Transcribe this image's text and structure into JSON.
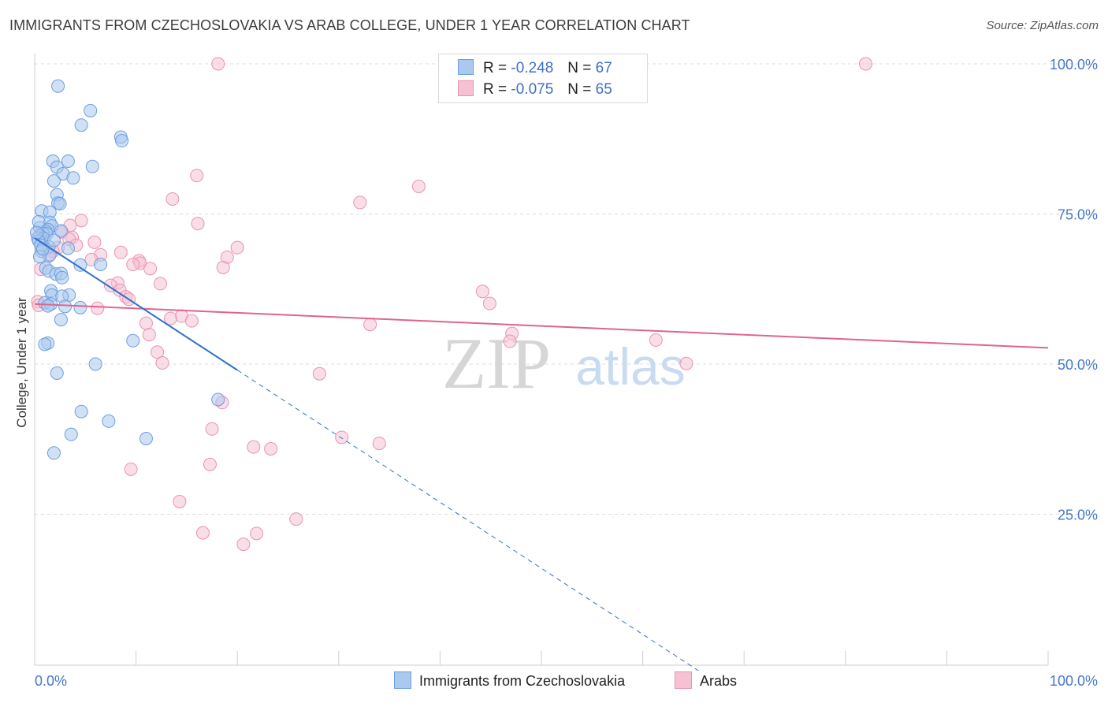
{
  "title": "IMMIGRANTS FROM CZECHOSLOVAKIA VS ARAB COLLEGE, UNDER 1 YEAR CORRELATION CHART",
  "source": "Source: ZipAtlas.com",
  "watermark": {
    "zip": "ZIP",
    "atlas": "atlas"
  },
  "legend": {
    "row1": {
      "r_label": "R =",
      "r_value": "-0.248",
      "n_label": "N =",
      "n_value": "67"
    },
    "row2": {
      "r_label": "R =",
      "r_value": "-0.075",
      "n_label": "N =",
      "n_value": "65"
    }
  },
  "colors": {
    "blue_fill": "#aac9ef",
    "blue_stroke": "#6d9ede",
    "blue_line": "#2f6fd0",
    "pink_fill": "#f6c2d3",
    "pink_stroke": "#e993b0",
    "pink_line": "#e0648c",
    "axis_text": "#4577c9",
    "grid": "#dcdcdc"
  },
  "chart_data": {
    "type": "scatter",
    "title": "IMMIGRANTS FROM CZECHOSLOVAKIA VS ARAB COLLEGE, UNDER 1 YEAR CORRELATION CHART",
    "xlabel": "",
    "ylabel": "College, Under 1 year",
    "xlim": [
      0,
      100
    ],
    "ylim": [
      0,
      100
    ],
    "x_tick_labels": [
      "0.0%",
      "100.0%"
    ],
    "y_tick_labels": [
      "25.0%",
      "50.0%",
      "75.0%",
      "100.0%"
    ],
    "y_ticks": [
      25,
      50,
      75,
      100
    ],
    "legend": [
      "Immigrants from Czechoslovakia",
      "Arabs"
    ],
    "series": [
      {
        "name": "Immigrants from Czechoslovakia",
        "r": -0.248,
        "n": 67,
        "trend": {
          "x0": 0,
          "y0": 71.0,
          "x1": 20,
          "y1": 49.0,
          "dash_to_x": 65.5
        },
        "points": [
          [
            2.3,
            96.3
          ],
          [
            5.5,
            92.2
          ],
          [
            4.6,
            89.8
          ],
          [
            8.5,
            87.8
          ],
          [
            8.6,
            87.2
          ],
          [
            1.8,
            83.8
          ],
          [
            3.3,
            83.8
          ],
          [
            2.2,
            82.8
          ],
          [
            5.7,
            82.9
          ],
          [
            2.8,
            81.7
          ],
          [
            3.8,
            81.0
          ],
          [
            1.9,
            80.5
          ],
          [
            2.2,
            78.2
          ],
          [
            2.3,
            76.8
          ],
          [
            2.5,
            76.7
          ],
          [
            0.7,
            75.5
          ],
          [
            1.5,
            75.3
          ],
          [
            1.5,
            73.6
          ],
          [
            1.7,
            73.0
          ],
          [
            0.5,
            72.7
          ],
          [
            1.3,
            72.4
          ],
          [
            1.1,
            72.1
          ],
          [
            0.8,
            71.8
          ],
          [
            1.2,
            71.7
          ],
          [
            0.5,
            71.4
          ],
          [
            0.3,
            71.0
          ],
          [
            0.9,
            70.9
          ],
          [
            2.6,
            72.2
          ],
          [
            0.4,
            70.5
          ],
          [
            0.6,
            69.8
          ],
          [
            1.4,
            69.5
          ],
          [
            3.3,
            69.3
          ],
          [
            0.7,
            68.8
          ],
          [
            1.5,
            68.2
          ],
          [
            0.5,
            67.9
          ],
          [
            6.5,
            66.6
          ],
          [
            4.5,
            66.5
          ],
          [
            1.1,
            66.0
          ],
          [
            1.4,
            65.5
          ],
          [
            2.1,
            65.0
          ],
          [
            2.6,
            65.1
          ],
          [
            2.7,
            64.4
          ],
          [
            1.6,
            62.2
          ],
          [
            1.7,
            61.5
          ],
          [
            3.4,
            61.5
          ],
          [
            2.7,
            61.3
          ],
          [
            1.0,
            60.2
          ],
          [
            1.6,
            60.0
          ],
          [
            1.3,
            59.7
          ],
          [
            3.0,
            59.6
          ],
          [
            4.5,
            59.4
          ],
          [
            2.6,
            57.4
          ],
          [
            9.7,
            53.9
          ],
          [
            1.3,
            53.5
          ],
          [
            1.0,
            53.3
          ],
          [
            6.0,
            50.0
          ],
          [
            2.2,
            48.5
          ],
          [
            18.1,
            44.1
          ],
          [
            4.6,
            42.1
          ],
          [
            7.3,
            40.5
          ],
          [
            3.6,
            38.3
          ],
          [
            11.0,
            37.6
          ],
          [
            1.9,
            35.2
          ],
          [
            0.4,
            73.7
          ],
          [
            0.8,
            69.2
          ],
          [
            1.9,
            70.6
          ],
          [
            0.2,
            71.9
          ]
        ]
      },
      {
        "name": "Arabs",
        "r": -0.075,
        "n": 65,
        "trend": {
          "x0": 0,
          "y0": 60.0,
          "x1": 100,
          "y1": 52.7
        },
        "points": [
          [
            18.1,
            100.0
          ],
          [
            82.0,
            100.0
          ],
          [
            16.0,
            81.4
          ],
          [
            37.9,
            79.6
          ],
          [
            13.6,
            77.5
          ],
          [
            32.1,
            76.9
          ],
          [
            4.6,
            73.9
          ],
          [
            16.1,
            73.4
          ],
          [
            3.5,
            73.1
          ],
          [
            2.7,
            72.0
          ],
          [
            3.7,
            71.1
          ],
          [
            3.4,
            70.8
          ],
          [
            5.9,
            70.3
          ],
          [
            4.1,
            69.8
          ],
          [
            2.3,
            69.4
          ],
          [
            20.0,
            69.4
          ],
          [
            1.8,
            68.8
          ],
          [
            8.5,
            68.6
          ],
          [
            6.5,
            68.2
          ],
          [
            1.4,
            68.0
          ],
          [
            19.0,
            67.8
          ],
          [
            5.6,
            67.4
          ],
          [
            10.3,
            67.2
          ],
          [
            10.4,
            66.8
          ],
          [
            9.7,
            66.6
          ],
          [
            18.6,
            66.1
          ],
          [
            0.6,
            65.8
          ],
          [
            8.2,
            63.5
          ],
          [
            12.4,
            63.4
          ],
          [
            7.5,
            63.1
          ],
          [
            8.4,
            62.3
          ],
          [
            44.2,
            62.1
          ],
          [
            9.0,
            61.2
          ],
          [
            44.9,
            60.1
          ],
          [
            0.3,
            60.4
          ],
          [
            6.2,
            59.3
          ],
          [
            14.5,
            58.0
          ],
          [
            13.4,
            57.6
          ],
          [
            15.5,
            57.2
          ],
          [
            11.0,
            56.8
          ],
          [
            33.1,
            56.6
          ],
          [
            47.1,
            55.1
          ],
          [
            11.3,
            54.9
          ],
          [
            46.9,
            53.8
          ],
          [
            61.3,
            54.0
          ],
          [
            12.1,
            52.0
          ],
          [
            12.6,
            50.2
          ],
          [
            64.3,
            50.1
          ],
          [
            28.1,
            48.4
          ],
          [
            18.5,
            43.6
          ],
          [
            17.5,
            39.2
          ],
          [
            30.3,
            37.8
          ],
          [
            34.0,
            36.8
          ],
          [
            21.6,
            36.2
          ],
          [
            23.3,
            35.9
          ],
          [
            17.3,
            33.3
          ],
          [
            9.5,
            32.5
          ],
          [
            14.3,
            27.1
          ],
          [
            25.8,
            24.2
          ],
          [
            16.6,
            21.9
          ],
          [
            21.9,
            21.8
          ],
          [
            20.6,
            20.0
          ],
          [
            9.3,
            60.8
          ],
          [
            0.4,
            59.8
          ],
          [
            11.4,
            65.9
          ]
        ]
      }
    ]
  }
}
